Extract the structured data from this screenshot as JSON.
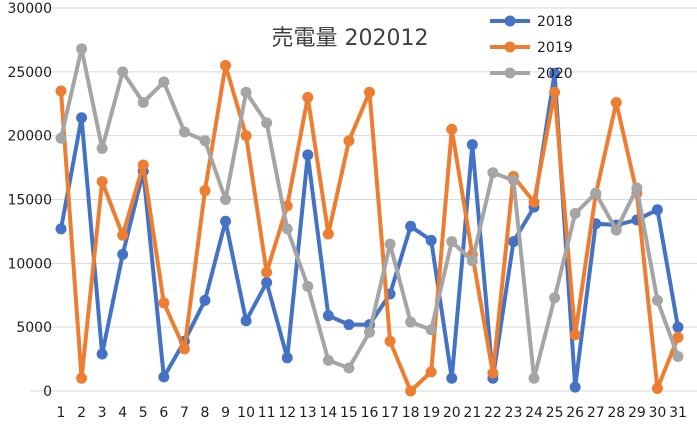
{
  "chart_data": {
    "type": "line",
    "title": "売電量 202012",
    "xlabel": "",
    "ylabel": "",
    "ylim": [
      0,
      30000
    ],
    "yticks": [
      0,
      5000,
      10000,
      15000,
      20000,
      25000,
      30000
    ],
    "grid": true,
    "legend_position": "top-right",
    "categories": [
      "1",
      "2",
      "3",
      "4",
      "5",
      "6",
      "7",
      "8",
      "9",
      "10",
      "11",
      "12",
      "13",
      "14",
      "15",
      "16",
      "17",
      "18",
      "19",
      "20",
      "21",
      "22",
      "23",
      "24",
      "25",
      "26",
      "27",
      "28",
      "29",
      "30",
      "31"
    ],
    "series": [
      {
        "name": "2018",
        "color": "#4472c4",
        "values": [
          12700,
          21400,
          2900,
          10700,
          17200,
          1100,
          3900,
          7100,
          13300,
          5500,
          8500,
          2600,
          18500,
          5900,
          5200,
          5200,
          7600,
          12900,
          11800,
          1000,
          19300,
          1000,
          11700,
          14400,
          24900,
          300,
          13100,
          13000,
          13400,
          14200,
          5000
        ]
      },
      {
        "name": "2019",
        "color": "#ed7d31",
        "values": [
          23500,
          1000,
          16400,
          12200,
          17700,
          6900,
          3300,
          15700,
          25500,
          20000,
          9300,
          14500,
          23000,
          12300,
          19600,
          23400,
          3900,
          0,
          1500,
          20500,
          10700,
          1400,
          16800,
          14800,
          23400,
          4400,
          15400,
          22600,
          15500,
          200,
          4200
        ]
      },
      {
        "name": "2020",
        "color": "#a5a5a5",
        "values": [
          19800,
          26800,
          19000,
          25000,
          22600,
          24200,
          20300,
          19600,
          15000,
          23400,
          21000,
          12700,
          8200,
          2400,
          1800,
          4600,
          11500,
          5400,
          4800,
          11700,
          10200,
          17100,
          16500,
          1000,
          7300,
          13900,
          15500,
          12600,
          15900,
          7100,
          2700
        ]
      }
    ]
  }
}
